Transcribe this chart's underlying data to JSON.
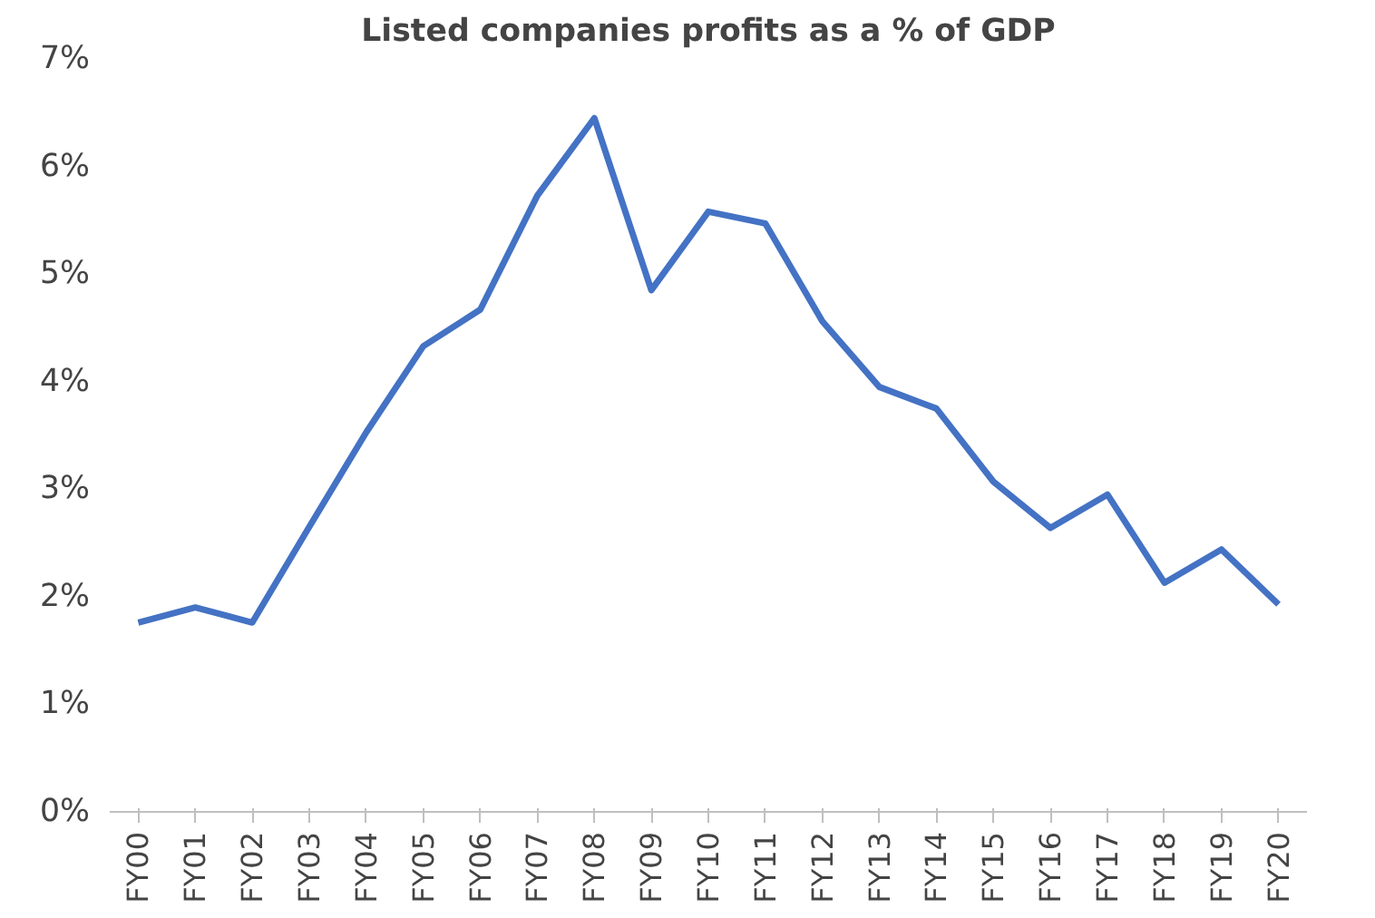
{
  "chart_data": {
    "type": "line",
    "title": "Listed companies profits as a % of GDP",
    "categories": [
      "FY00",
      "FY01",
      "FY02",
      "FY03",
      "FY04",
      "FY05",
      "FY06",
      "FY07",
      "FY08",
      "FY09",
      "FY10",
      "FY11",
      "FY12",
      "FY13",
      "FY14",
      "FY15",
      "FY16",
      "FY17",
      "FY18",
      "FY19",
      "FY20"
    ],
    "series": [
      {
        "color": "#4472c4",
        "values": [
          1.76,
          1.9,
          1.76,
          2.65,
          3.53,
          4.33,
          4.67,
          5.73,
          6.45,
          4.85,
          5.58,
          5.47,
          4.56,
          3.95,
          3.75,
          3.07,
          2.64,
          2.95,
          2.13,
          2.44,
          1.93
        ]
      }
    ],
    "ylim": [
      0,
      7
    ],
    "yticks": [
      {
        "value": 0,
        "label": "0%"
      },
      {
        "value": 1,
        "label": "1%"
      },
      {
        "value": 2,
        "label": "2%"
      },
      {
        "value": 3,
        "label": "3%"
      },
      {
        "value": 4,
        "label": "4%"
      },
      {
        "value": 5,
        "label": "5%"
      },
      {
        "value": 6,
        "label": "6%"
      },
      {
        "value": 7,
        "label": "7%"
      }
    ],
    "line_style": "solid"
  }
}
